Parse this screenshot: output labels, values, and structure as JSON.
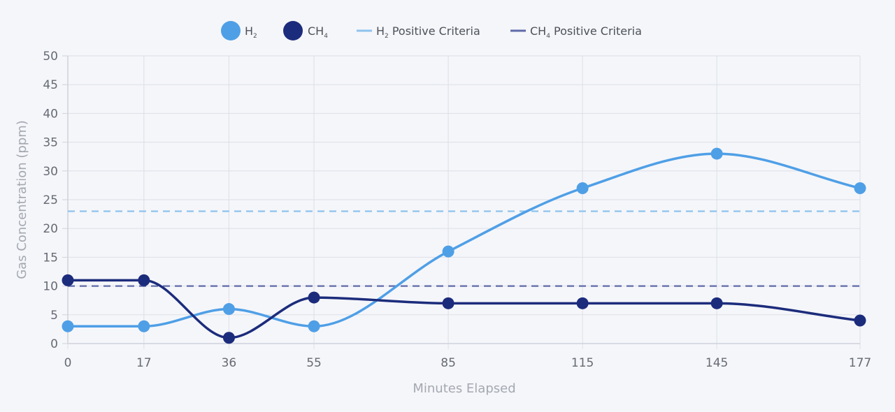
{
  "chart_data": {
    "type": "line",
    "title": "",
    "xlabel": "Minutes Elapsed",
    "ylabel": "Gas Concentration (ppm)",
    "x": [
      0,
      17,
      36,
      55,
      85,
      115,
      145,
      177
    ],
    "x_tick_labels": [
      "0",
      "17",
      "36",
      "55",
      "85",
      "115",
      "145",
      "177"
    ],
    "y_ticks": [
      0,
      5,
      10,
      15,
      20,
      25,
      30,
      35,
      40,
      45,
      50
    ],
    "ylim": [
      0,
      50
    ],
    "grid": true,
    "legend_position": "top-center",
    "series": [
      {
        "key": "h2",
        "name_main": "H",
        "name_sub": "2",
        "color": "#4f9fe6",
        "values": [
          3,
          3,
          6,
          3,
          16,
          27,
          33,
          27
        ]
      },
      {
        "key": "ch4",
        "name_main": "CH",
        "name_sub": "4",
        "color": "#1c2c7c",
        "values": [
          11,
          11,
          1,
          8,
          7,
          7,
          7,
          4
        ]
      }
    ],
    "reference_lines": [
      {
        "key": "h2-criteria",
        "name_main": "H",
        "name_sub": "2",
        "name_rest": " Positive Criteria",
        "color": "#8ec3ee",
        "value": 23
      },
      {
        "key": "ch4-criteria",
        "name_main": "CH",
        "name_sub": "4",
        "name_rest": " Positive Criteria",
        "color": "#5f6aa8",
        "value": 10
      }
    ]
  }
}
